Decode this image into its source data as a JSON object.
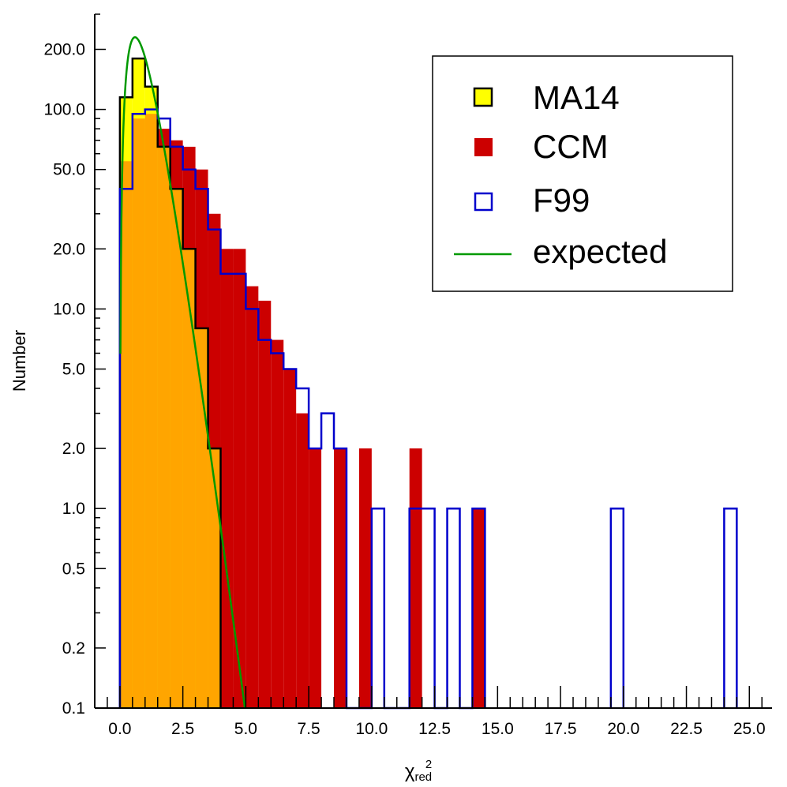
{
  "chart_data": {
    "type": "histogram",
    "xlabel": "χ",
    "xlabel_superscript": "2",
    "xlabel_subscript": "red",
    "ylabel": "Number",
    "yscale": "log",
    "xlim": [
      -1.0,
      25.9
    ],
    "ylim": [
      0.1,
      300
    ],
    "bin_width": 0.5,
    "x_ticks": [
      {
        "value": 0.0,
        "label": "0.0"
      },
      {
        "value": 2.5,
        "label": "2.5"
      },
      {
        "value": 5.0,
        "label": "5.0"
      },
      {
        "value": 7.5,
        "label": "7.5"
      },
      {
        "value": 10.0,
        "label": "10.0"
      },
      {
        "value": 12.5,
        "label": "12.5"
      },
      {
        "value": 15.0,
        "label": "15.0"
      },
      {
        "value": 17.5,
        "label": "17.5"
      },
      {
        "value": 20.0,
        "label": "20.0"
      },
      {
        "value": 22.5,
        "label": "22.5"
      },
      {
        "value": 25.0,
        "label": "25.0"
      }
    ],
    "y_ticks": [
      {
        "value": 0.1,
        "label": "0.1"
      },
      {
        "value": 0.2,
        "label": "0.2"
      },
      {
        "value": 0.5,
        "label": "0.5"
      },
      {
        "value": 1.0,
        "label": "1.0"
      },
      {
        "value": 2.0,
        "label": "2.0"
      },
      {
        "value": 5.0,
        "label": "5.0"
      },
      {
        "value": 10.0,
        "label": "10.0"
      },
      {
        "value": 20.0,
        "label": "20.0"
      },
      {
        "value": 50.0,
        "label": "50.0"
      },
      {
        "value": 100.0,
        "label": "100.0"
      },
      {
        "value": 200.0,
        "label": "200.0"
      }
    ],
    "series": [
      {
        "name": "MA14",
        "style": "filled-step-outline",
        "fill_color": "#ffff00",
        "edge_color": "#000000",
        "bin_starts": [
          0.0,
          0.5,
          1.0,
          1.5,
          2.0,
          2.5,
          3.0,
          3.5
        ],
        "counts": [
          115,
          180,
          130,
          65,
          40,
          20,
          8,
          2
        ]
      },
      {
        "name": "CCM",
        "style": "filled",
        "fill_color": "#cc0000",
        "bin_starts": [
          0.0,
          0.5,
          1.0,
          1.5,
          2.0,
          2.5,
          3.0,
          3.5,
          4.0,
          4.5,
          5.0,
          5.5,
          6.0,
          6.5,
          7.0,
          7.5,
          8.5,
          9.5,
          11.5,
          14.0
        ],
        "counts": [
          55,
          90,
          95,
          80,
          70,
          65,
          50,
          30,
          20,
          20,
          13,
          11,
          7,
          5,
          3,
          2,
          2,
          2,
          2,
          1
        ]
      },
      {
        "name": "F99",
        "style": "outline-step",
        "edge_color": "#0000cc",
        "bin_starts": [
          0.0,
          0.5,
          1.0,
          1.5,
          2.0,
          2.5,
          3.0,
          3.5,
          4.0,
          4.5,
          5.0,
          5.5,
          6.0,
          6.5,
          7.0,
          7.5,
          8.0,
          8.5,
          9.0,
          9.5,
          10.0,
          10.5,
          11.0,
          11.5,
          12.0,
          12.5,
          13.0,
          13.5,
          14.0,
          19.5,
          24.0
        ],
        "counts": [
          40,
          95,
          100,
          90,
          65,
          50,
          40,
          25,
          15,
          15,
          10,
          7,
          6,
          5,
          4,
          2,
          3,
          2,
          0,
          0,
          1,
          0,
          0,
          1,
          1,
          0,
          1,
          0,
          1,
          1,
          1
        ]
      },
      {
        "name": "expected",
        "style": "line",
        "color": "#009900",
        "curve": "chi-square-reduced",
        "dof": 5
      }
    ],
    "legend_position": "top-right",
    "colors": {
      "overlap_fill": "#ffa500"
    }
  }
}
